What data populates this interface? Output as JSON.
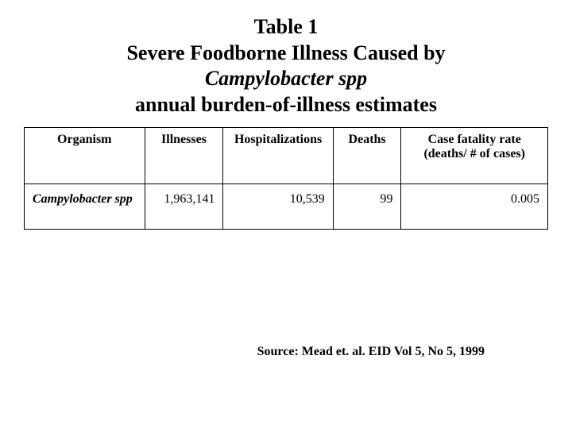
{
  "title": {
    "line1": "Table 1",
    "line2": "Severe Foodborne Illness Caused by",
    "line3_italic": "Campylobacter spp",
    "line4": "annual burden-of-illness estimates"
  },
  "table": {
    "columns": [
      "Organism",
      "Illnesses",
      "Hospitalizations",
      "Deaths",
      "Case fatality rate (deaths/ # of cases)"
    ],
    "rows": [
      {
        "organism": "Campylobacter spp",
        "illnesses": "1,963,141",
        "hospitalizations": "10,539",
        "deaths": "99",
        "cfr": "0.005"
      }
    ]
  },
  "source": "Source:  Mead et. al.  EID Vol 5, No 5, 1999",
  "styling": {
    "background_color": "#ffffff",
    "text_color": "#000000",
    "border_color": "#000000",
    "title_fontsize": 26,
    "cell_fontsize": 16,
    "source_fontsize": 16,
    "font_family": "Times New Roman"
  }
}
